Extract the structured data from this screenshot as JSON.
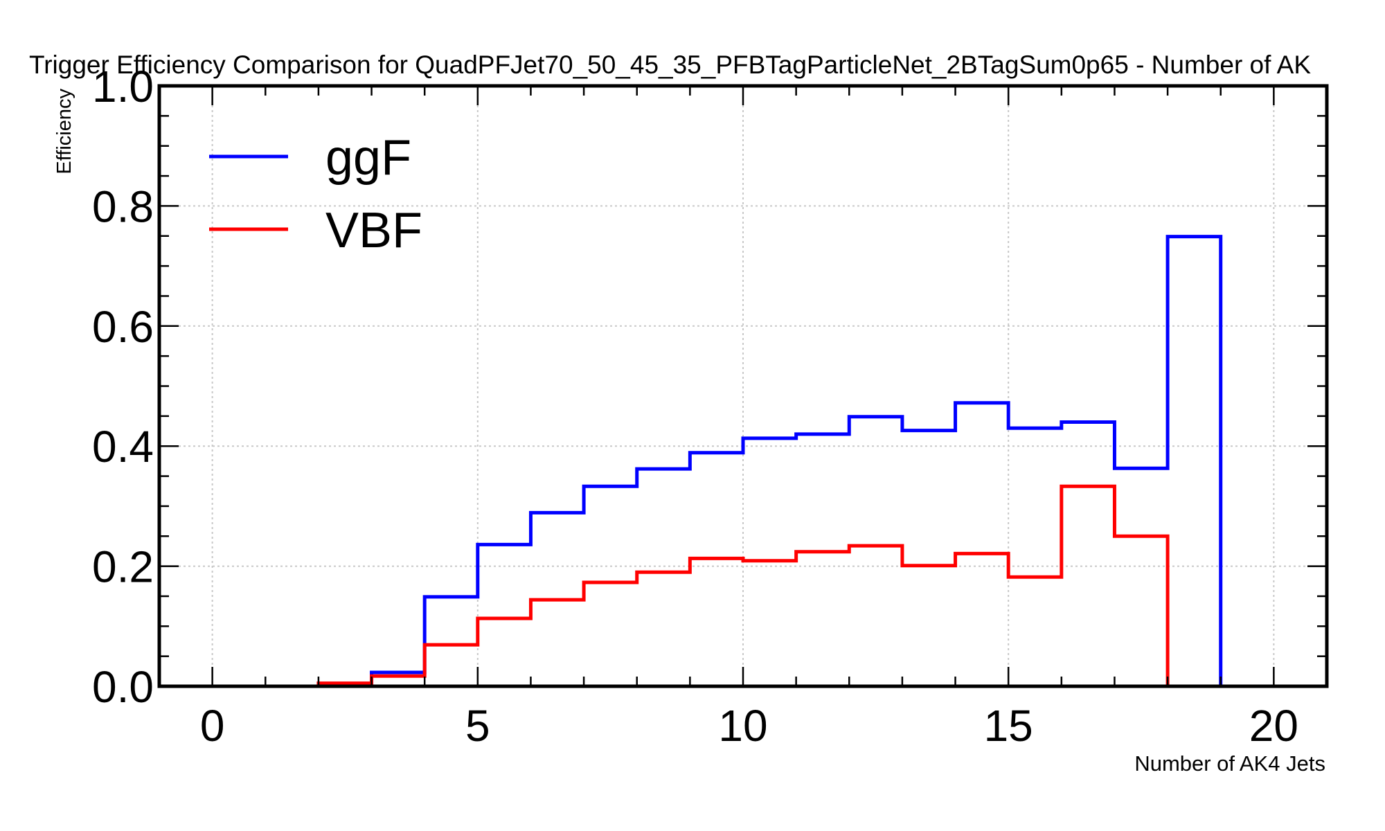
{
  "chart_data": {
    "type": "line",
    "title": "Trigger Efficiency Comparison for QuadPFJet70_50_45_35_PFBTagParticleNet_2BTagSum0p65 - Number of AK",
    "xlabel": "Number of AK4 Jets",
    "ylabel": "Efficiency",
    "xlim": [
      -1,
      21
    ],
    "ylim": [
      0,
      1
    ],
    "xticks": [
      0,
      5,
      10,
      15,
      20
    ],
    "yticks": [
      0.0,
      0.2,
      0.4,
      0.6,
      0.8,
      1.0
    ],
    "x_tick_labels": [
      "0",
      "5",
      "10",
      "15",
      "20"
    ],
    "y_tick_labels": [
      "0.0",
      "0.2",
      "0.4",
      "0.6",
      "0.8",
      "1.0"
    ],
    "grid": true,
    "legend_position": "top-left",
    "bin_edges": [
      0,
      1,
      2,
      3,
      4,
      5,
      6,
      7,
      8,
      9,
      10,
      11,
      12,
      13,
      14,
      15,
      16,
      17,
      18,
      19
    ],
    "series": [
      {
        "name": "ggF",
        "color": "#0000ff",
        "values": [
          0,
          0,
          0,
          0.023,
          0.149,
          0.236,
          0.289,
          0.333,
          0.362,
          0.389,
          0.413,
          0.42,
          0.449,
          0.426,
          0.472,
          0.43,
          0.44,
          0.363,
          0.749
        ]
      },
      {
        "name": "VBF",
        "color": "#ff0000",
        "values": [
          0,
          0,
          0.005,
          0.017,
          0.069,
          0.113,
          0.144,
          0.173,
          0.19,
          0.213,
          0.209,
          0.224,
          0.234,
          0.201,
          0.221,
          0.182,
          0.333,
          0.25
        ]
      }
    ]
  }
}
